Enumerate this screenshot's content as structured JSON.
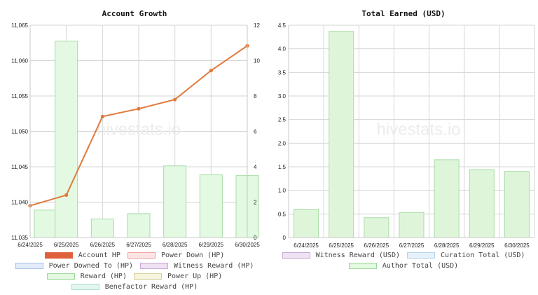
{
  "chart_data": [
    {
      "type": "bar",
      "title": "Account Growth",
      "categories": [
        "6/24/2025",
        "6/25/2025",
        "6/26/2025",
        "6/27/2025",
        "6/28/2025",
        "6/29/2025",
        "6/30/2025"
      ],
      "left_axis": {
        "ylim": [
          11035,
          11065
        ],
        "ticks": [
          "11,035",
          "11,040",
          "11,045",
          "11,050",
          "11,055",
          "11,060",
          "11,065"
        ]
      },
      "right_axis": {
        "ylim": [
          0,
          12
        ],
        "ticks": [
          "0",
          "2",
          "4",
          "6",
          "8",
          "10",
          "12"
        ]
      },
      "series": [
        {
          "name": "Account HP",
          "type": "line",
          "axis": "left",
          "color": "#e07a3c",
          "values": [
            11039.5,
            11041.0,
            11052.1,
            11053.2,
            11054.5,
            11058.6,
            11062.1
          ]
        },
        {
          "name": "Reward (HP)",
          "type": "bar",
          "axis": "right",
          "color": "#b7ebb9",
          "values": [
            1.55,
            11.1,
            1.05,
            1.35,
            4.05,
            3.55,
            3.5
          ]
        }
      ],
      "legend": {
        "placement": "bottom",
        "rows": [
          [
            {
              "label": "Account HP",
              "fill": "#e0603c",
              "border": "#e0603c"
            },
            {
              "label": "Power Down (HP)",
              "fill": "#fde4e4",
              "border": "#f0a0a0"
            }
          ],
          [
            {
              "label": "Power Downed To (HP)",
              "fill": "#e4ecfb",
              "border": "#a6c0ea"
            },
            {
              "label": "Witness Reward (HP)",
              "fill": "#efe2f3",
              "border": "#c6a8d2"
            }
          ],
          [
            {
              "label": "Reward (HP)",
              "fill": "#e3f9e2",
              "border": "#9dd89a"
            },
            {
              "label": "Power Up (HP)",
              "fill": "#f6f4dc",
              "border": "#d6d09a"
            }
          ],
          [
            {
              "label": "Benefactor Reward (HP)",
              "fill": "#e4f6f1",
              "border": "#a8ddd0"
            }
          ]
        ]
      },
      "watermark": "hivestats.io",
      "grid": true
    },
    {
      "type": "bar",
      "title": "Total Earned (USD)",
      "categories": [
        "6/24/2025",
        "6/25/2025",
        "6/26/2025",
        "6/27/2025",
        "6/28/2025",
        "6/29/2025",
        "6/30/2025"
      ],
      "left_axis": {
        "ylim": [
          0,
          4.5
        ],
        "ticks": [
          "0",
          "0.5",
          "1.0",
          "1.5",
          "2.0",
          "2.5",
          "3.0",
          "3.5",
          "4.0",
          "4.5"
        ]
      },
      "series": [
        {
          "name": "Author Total (USD)",
          "type": "bar",
          "axis": "left",
          "color": "#d9f3d4",
          "values": [
            0.6,
            4.37,
            0.42,
            0.53,
            1.65,
            1.44,
            1.4
          ]
        }
      ],
      "legend": {
        "placement": "bottom",
        "rows": [
          [
            {
              "label": "Witness Reward (USD)",
              "fill": "#efe2f3",
              "border": "#c6a8d2"
            },
            {
              "label": "Curation Total (USD)",
              "fill": "#e6f2fb",
              "border": "#b4d4ec"
            }
          ],
          [
            {
              "label": "Author Total (USD)",
              "fill": "#e3f9e2",
              "border": "#9dd89a"
            }
          ]
        ]
      },
      "watermark": "hivestats.io",
      "grid": true
    }
  ]
}
